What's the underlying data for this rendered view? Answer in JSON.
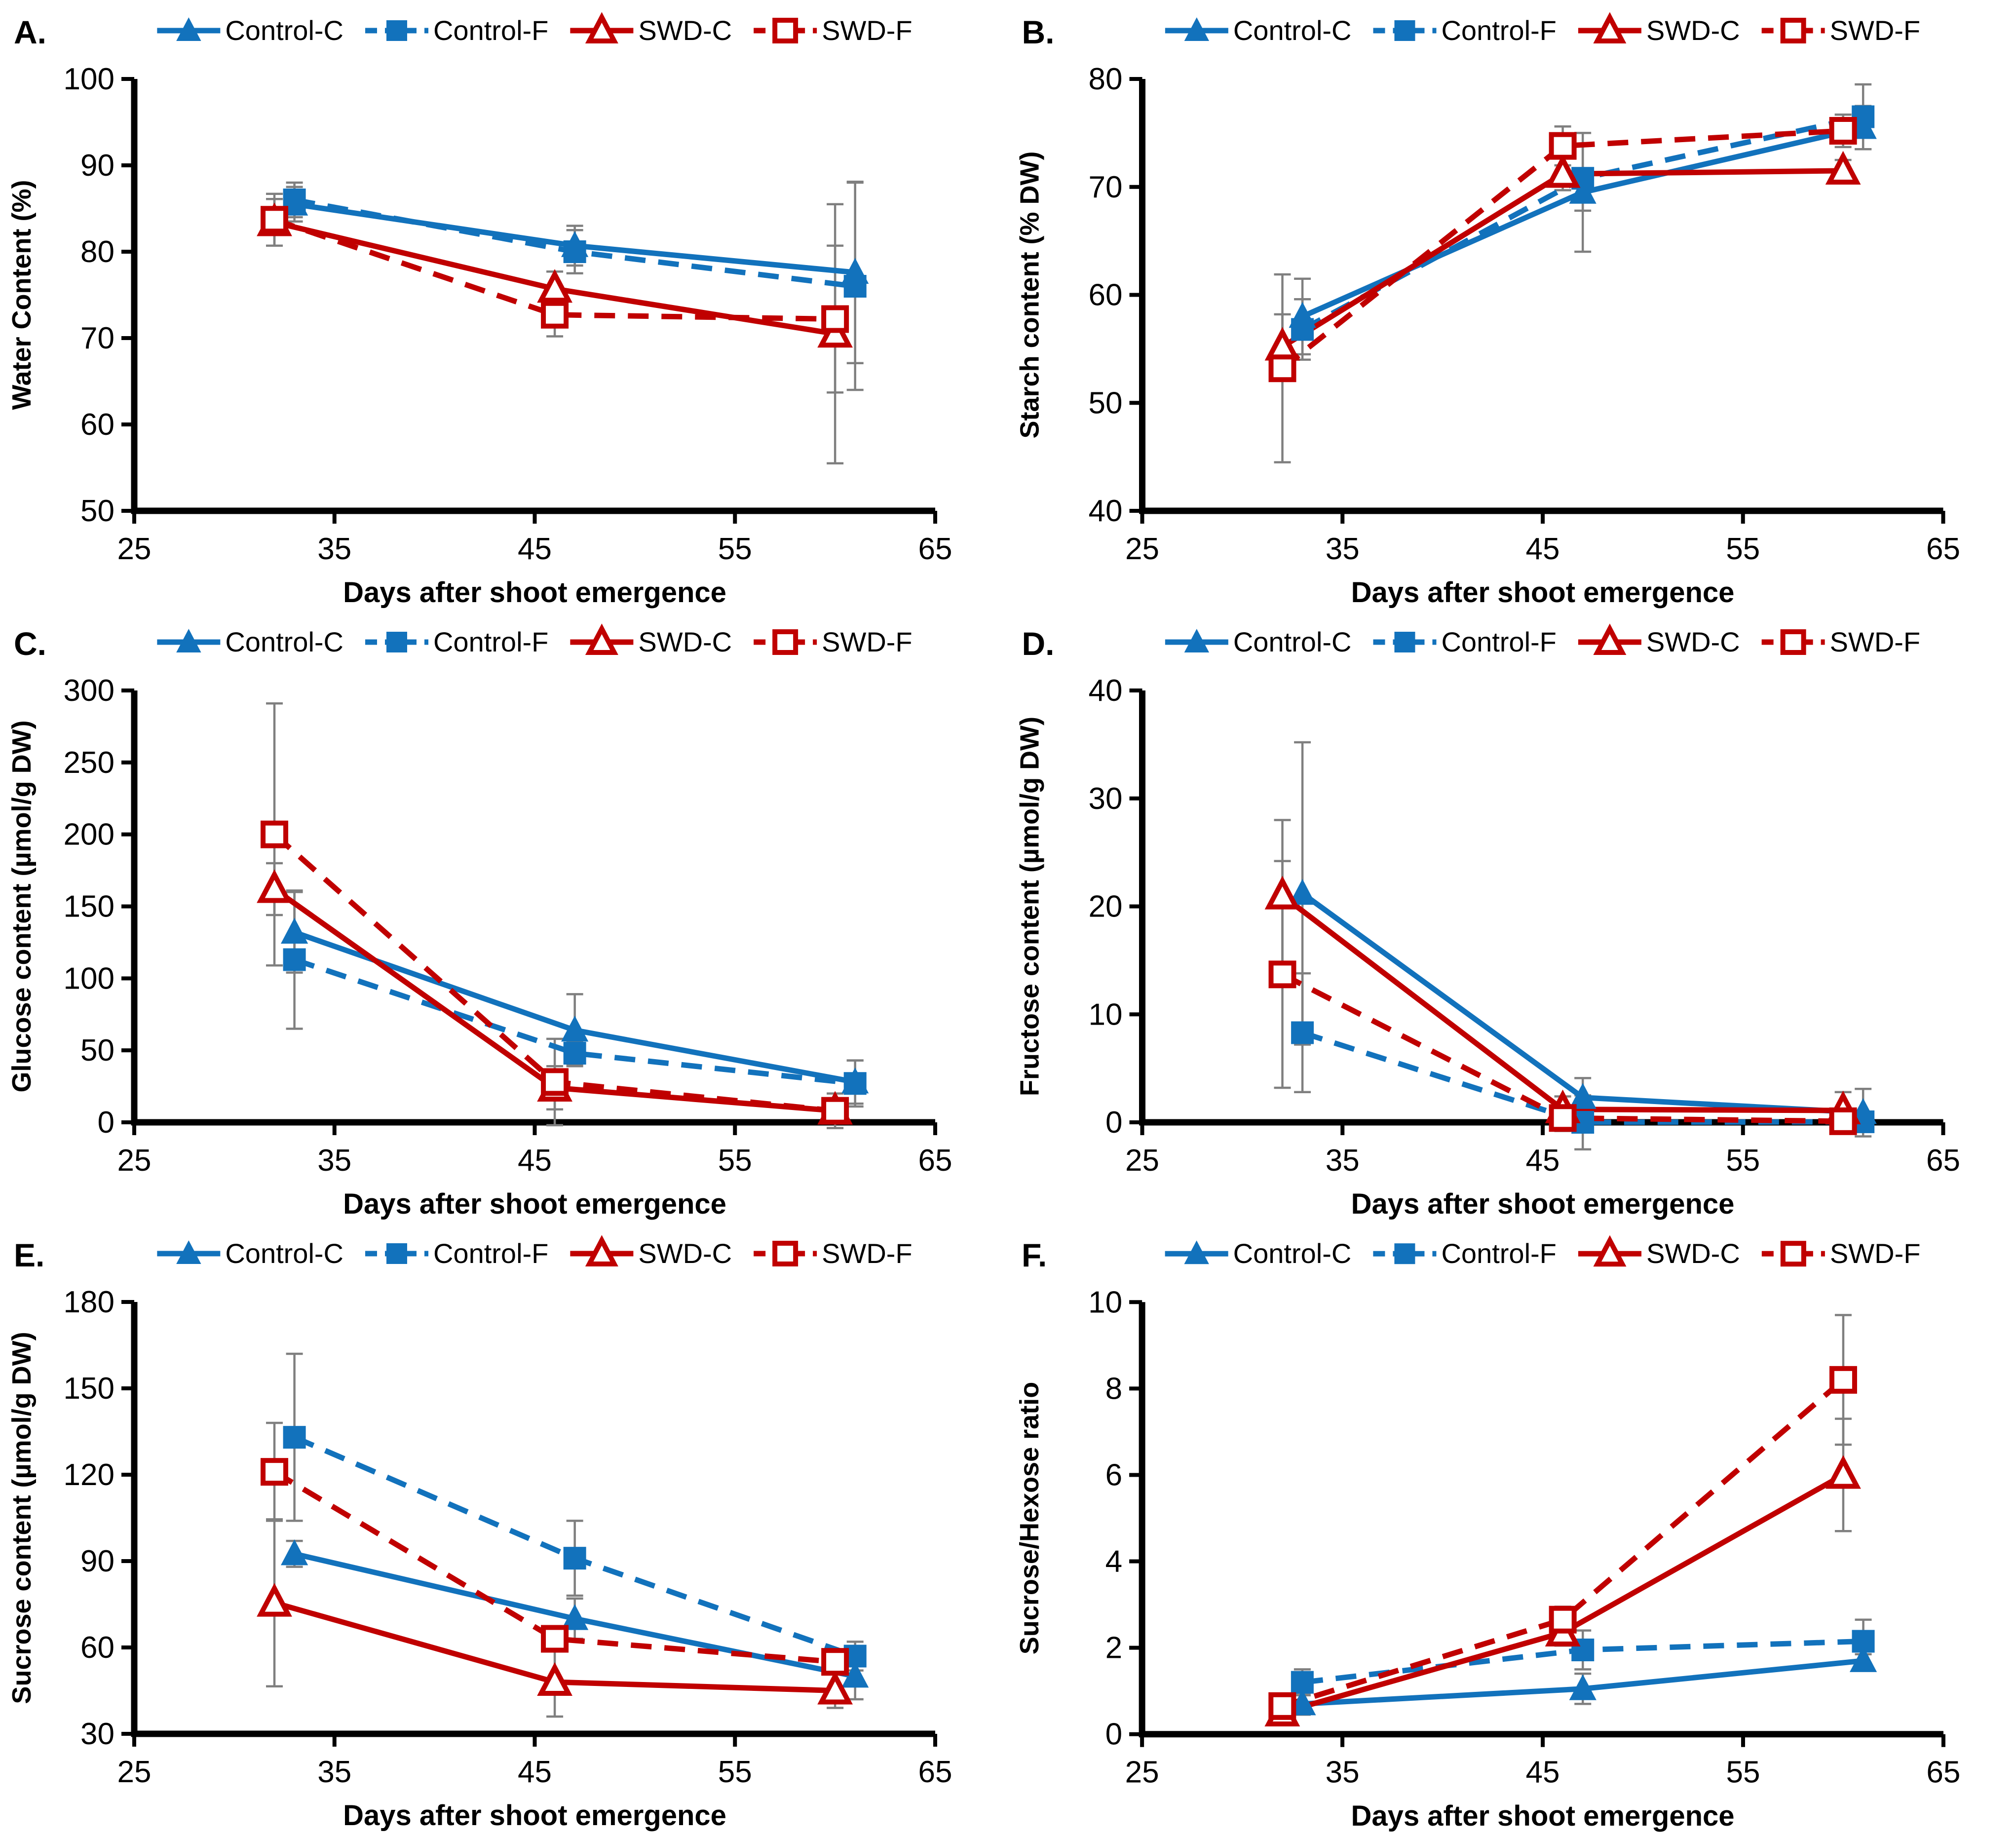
{
  "figure": {
    "x_label": "Days after shoot emergence",
    "x_ticks": [
      25,
      35,
      45,
      55,
      65
    ],
    "x_range": [
      25,
      65
    ],
    "colors": {
      "control_blue": "#1272BC",
      "swd_red": "#C00000",
      "error_bar": "#7F7F7F",
      "axis": "#000000"
    },
    "legend_labels": [
      "Control-C",
      "Control-F",
      "SWD-C",
      "SWD-F"
    ],
    "series_styles": [
      {
        "name": "Control-C",
        "color": "#1272BC",
        "line": "solid",
        "marker": "triangle",
        "marker_fill": "filled"
      },
      {
        "name": "Control-F",
        "color": "#1272BC",
        "line": "dashed",
        "marker": "square",
        "marker_fill": "filled"
      },
      {
        "name": "SWD-C",
        "color": "#C00000",
        "line": "solid",
        "marker": "triangle",
        "marker_fill": "open"
      },
      {
        "name": "SWD-F",
        "color": "#C00000",
        "line": "dashed",
        "marker": "square",
        "marker_fill": "open"
      }
    ]
  },
  "chart_data": [
    {
      "panel": "A.",
      "type": "line",
      "title": "",
      "xlabel": "Days after shoot emergence",
      "ylabel": "Water Content (%)",
      "xlim": [
        25,
        65
      ],
      "xticks": [
        25,
        35,
        45,
        55,
        65
      ],
      "ylim": [
        50,
        100
      ],
      "yticks": [
        50,
        60,
        70,
        80,
        90,
        100
      ],
      "grid": false,
      "legend_position": "top",
      "series": [
        {
          "name": "Control-C",
          "x": [
            33,
            47,
            61
          ],
          "y": [
            85.5,
            80.7,
            77.6
          ],
          "err": [
            2.0,
            2.3,
            10.5
          ]
        },
        {
          "name": "Control-F",
          "x": [
            33,
            47,
            61
          ],
          "y": [
            86.0,
            80.0,
            76.0
          ],
          "err": [
            2.0,
            2.5,
            12.0
          ]
        },
        {
          "name": "SWD-C",
          "x": [
            32,
            46,
            60
          ],
          "y": [
            83.4,
            75.7,
            70.5
          ],
          "err": [
            2.7,
            2.0,
            15.0
          ]
        },
        {
          "name": "SWD-F",
          "x": [
            32,
            46,
            60
          ],
          "y": [
            83.7,
            72.7,
            72.2
          ],
          "err": [
            3.0,
            2.5,
            8.5
          ]
        }
      ]
    },
    {
      "panel": "B.",
      "type": "line",
      "title": "",
      "xlabel": "Days after shoot emergence",
      "ylabel": "Starch content (% DW)",
      "xlim": [
        25,
        65
      ],
      "xticks": [
        25,
        35,
        45,
        55,
        65
      ],
      "ylim": [
        40,
        80
      ],
      "yticks": [
        40,
        50,
        60,
        70,
        80
      ],
      "grid": false,
      "legend_position": "top",
      "series": [
        {
          "name": "Control-C",
          "x": [
            33,
            47,
            61
          ],
          "y": [
            58.0,
            69.5,
            75.5
          ],
          "err": [
            3.5,
            5.5,
            2.0
          ]
        },
        {
          "name": "Control-F",
          "x": [
            33,
            47,
            61
          ],
          "y": [
            56.8,
            70.8,
            76.5
          ],
          "err": [
            2.8,
            3.0,
            3.0
          ]
        },
        {
          "name": "SWD-C",
          "x": [
            32,
            46,
            60
          ],
          "y": [
            55.2,
            71.2,
            71.5
          ],
          "err": [
            3.0,
            1.5,
            1.0
          ]
        },
        {
          "name": "SWD-F",
          "x": [
            32,
            46,
            60
          ],
          "y": [
            53.2,
            73.8,
            75.2
          ],
          "err": [
            8.7,
            1.8,
            1.5
          ]
        }
      ]
    },
    {
      "panel": "C.",
      "type": "line",
      "title": "",
      "xlabel": "Days after shoot emergence",
      "ylabel": "Glucose content (µmol/g DW)",
      "xlim": [
        25,
        65
      ],
      "xticks": [
        25,
        35,
        45,
        55,
        65
      ],
      "ylim": [
        0,
        300
      ],
      "yticks": [
        0,
        50,
        100,
        150,
        200,
        250,
        300
      ],
      "grid": false,
      "legend_position": "top",
      "series": [
        {
          "name": "Control-C",
          "x": [
            33,
            47,
            61
          ],
          "y": [
            132,
            64,
            28
          ],
          "err": [
            28,
            25,
            15
          ]
        },
        {
          "name": "Control-F",
          "x": [
            33,
            47,
            61
          ],
          "y": [
            113,
            48,
            27
          ],
          "err": [
            48,
            8,
            16
          ]
        },
        {
          "name": "SWD-C",
          "x": [
            32,
            46,
            60
          ],
          "y": [
            162,
            24,
            8
          ],
          "err": [
            18,
            15,
            5
          ]
        },
        {
          "name": "SWD-F",
          "x": [
            32,
            46,
            60
          ],
          "y": [
            200,
            28,
            8
          ],
          "err": [
            91,
            30,
            12
          ]
        }
      ]
    },
    {
      "panel": "D.",
      "type": "line",
      "title": "",
      "xlabel": "Days after shoot emergence",
      "ylabel": "Fructose content (µmol/g DW)",
      "xlim": [
        25,
        65
      ],
      "xticks": [
        25,
        35,
        45,
        55,
        65
      ],
      "ylim": [
        0,
        40
      ],
      "yticks": [
        0,
        10,
        20,
        30,
        40
      ],
      "grid": false,
      "legend_position": "top",
      "series": [
        {
          "name": "Control-C",
          "x": [
            33,
            47,
            61
          ],
          "y": [
            21.2,
            2.3,
            0.9
          ],
          "err": [
            14.0,
            1.8,
            2.2
          ]
        },
        {
          "name": "Control-F",
          "x": [
            33,
            47,
            61
          ],
          "y": [
            8.3,
            0.0,
            0.05
          ],
          "err": [
            5.5,
            2.5,
            0.8
          ]
        },
        {
          "name": "SWD-C",
          "x": [
            32,
            46,
            60
          ],
          "y": [
            21.0,
            1.2,
            1.1
          ],
          "err": [
            7.0,
            1.2,
            1.7
          ]
        },
        {
          "name": "SWD-F",
          "x": [
            32,
            46,
            60
          ],
          "y": [
            13.7,
            0.4,
            0.1
          ],
          "err": [
            10.5,
            1.2,
            0.5
          ]
        }
      ]
    },
    {
      "panel": "E.",
      "type": "line",
      "title": "",
      "xlabel": "Days after shoot emergence",
      "ylabel": "Sucrose content (µmol/g DW)",
      "xlim": [
        25,
        65
      ],
      "xticks": [
        25,
        35,
        45,
        55,
        65
      ],
      "ylim": [
        30,
        180
      ],
      "yticks": [
        30,
        60,
        90,
        120,
        150,
        180
      ],
      "grid": false,
      "legend_position": "top",
      "series": [
        {
          "name": "Control-C",
          "x": [
            33,
            47,
            61
          ],
          "y": [
            92.5,
            70,
            50
          ],
          "err": [
            4.5,
            7,
            8
          ]
        },
        {
          "name": "Control-F",
          "x": [
            33,
            47,
            61
          ],
          "y": [
            133,
            91,
            57
          ],
          "err": [
            29,
            13,
            5
          ]
        },
        {
          "name": "SWD-C",
          "x": [
            32,
            46,
            60
          ],
          "y": [
            75.5,
            48,
            45
          ],
          "err": [
            29,
            12,
            6
          ]
        },
        {
          "name": "SWD-F",
          "x": [
            32,
            46,
            60
          ],
          "y": [
            121,
            63,
            55
          ],
          "err": [
            17,
            3,
            4
          ]
        }
      ]
    },
    {
      "panel": "F.",
      "type": "line",
      "title": "",
      "xlabel": "Days after shoot emergence",
      "ylabel": "Sucrose/Hexose ratio",
      "xlim": [
        25,
        65
      ],
      "xticks": [
        25,
        35,
        45,
        55,
        65
      ],
      "ylim": [
        0,
        10
      ],
      "yticks": [
        0,
        2,
        4,
        6,
        8,
        10
      ],
      "grid": false,
      "legend_position": "top",
      "series": [
        {
          "name": "Control-C",
          "x": [
            33,
            47,
            61
          ],
          "y": [
            0.7,
            1.05,
            1.7
          ],
          "err": [
            0.25,
            0.35,
            0.15
          ]
        },
        {
          "name": "Control-F",
          "x": [
            33,
            47,
            61
          ],
          "y": [
            1.2,
            1.95,
            2.15
          ],
          "err": [
            0.3,
            0.45,
            0.5
          ]
        },
        {
          "name": "SWD-C",
          "x": [
            32,
            46,
            60
          ],
          "y": [
            0.5,
            2.35,
            6.0
          ],
          "err": [
            0.2,
            0.3,
            1.3
          ]
        },
        {
          "name": "SWD-F",
          "x": [
            32,
            46,
            60
          ],
          "y": [
            0.65,
            2.65,
            8.2
          ],
          "err": [
            0.25,
            0.3,
            1.5
          ]
        }
      ]
    }
  ]
}
